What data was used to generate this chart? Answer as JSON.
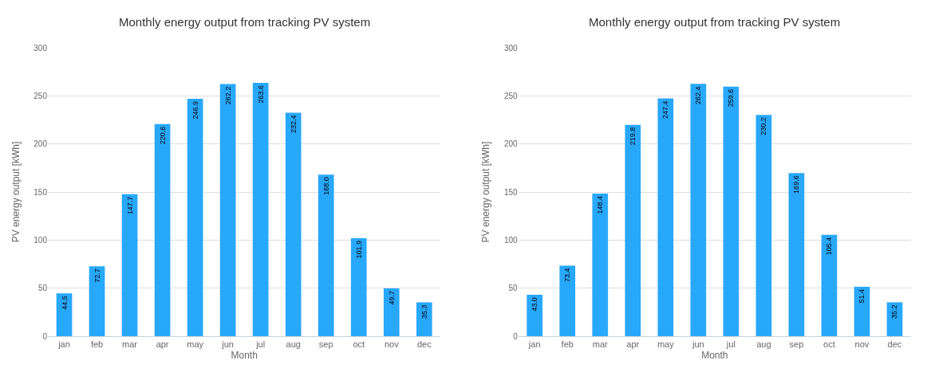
{
  "chart_data": [
    {
      "type": "bar",
      "title": "Monthly energy output from tracking PV system",
      "xlabel": "Month",
      "ylabel": "PV energy output [kWh]",
      "categories": [
        "jan",
        "feb",
        "mar",
        "apr",
        "may",
        "jun",
        "jul",
        "aug",
        "sep",
        "oct",
        "nov",
        "dec"
      ],
      "color": "#28a8fa",
      "ylim": [
        0,
        300
      ],
      "yticks": [
        0,
        50,
        100,
        150,
        200,
        250,
        300
      ],
      "grid": "y",
      "values": [
        44.5,
        72.7,
        147.7,
        220.6,
        246.9,
        262.2,
        263.6,
        232.4,
        168.0,
        101.9,
        49.7,
        35.3
      ],
      "value_labels": [
        "44.5",
        "72.7",
        "147.7",
        "220.6",
        "246.9",
        "262.2",
        "263.6",
        "232.4",
        "168.0",
        "101.9",
        "49.7",
        "35.3"
      ]
    },
    {
      "type": "bar",
      "title": "Monthly energy output from tracking PV system",
      "xlabel": "Month",
      "ylabel": "PV energy output [kWh]",
      "categories": [
        "jan",
        "feb",
        "mar",
        "apr",
        "may",
        "jun",
        "jul",
        "aug",
        "sep",
        "oct",
        "nov",
        "dec"
      ],
      "color": "#28a8fa",
      "ylim": [
        0,
        300
      ],
      "yticks": [
        0,
        50,
        100,
        150,
        200,
        250,
        300
      ],
      "grid": "y",
      "values": [
        43.0,
        73.4,
        148.4,
        219.8,
        247.4,
        262.4,
        259.6,
        230.2,
        169.6,
        105.4,
        51.4,
        35.2
      ],
      "value_labels": [
        "43.0",
        "73.4",
        "148.4",
        "219.8",
        "247.4",
        "262.4",
        "259.6",
        "230.2",
        "169.6",
        "105.4",
        "51.4",
        "35.2"
      ]
    }
  ]
}
